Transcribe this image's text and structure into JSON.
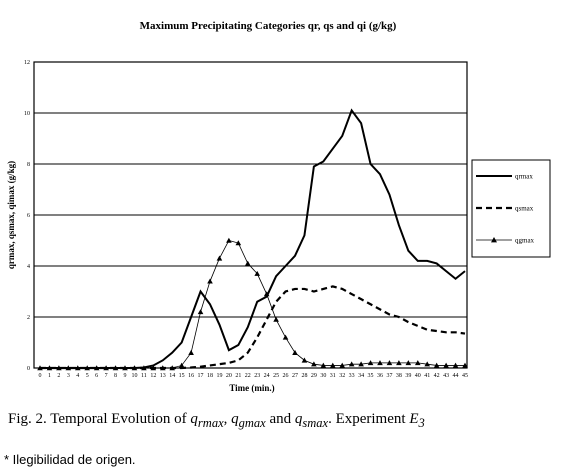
{
  "chart_data": {
    "type": "line",
    "title": "Maximum Precipitating Categories qr, qs and qi (g/kg)",
    "xlabel": "Time (min.)",
    "ylabel": "qrmax, qsmax, qimax (g/kg)",
    "ylim": [
      0,
      12
    ],
    "y_ticks": [
      "0",
      "2",
      "4",
      "6",
      "8",
      "10",
      "12"
    ],
    "x": [
      0,
      1,
      2,
      3,
      4,
      5,
      6,
      7,
      8,
      9,
      10,
      11,
      12,
      13,
      14,
      15,
      16,
      17,
      18,
      19,
      20,
      21,
      22,
      23,
      24,
      25,
      26,
      27,
      28,
      29,
      30,
      31,
      32,
      33,
      34,
      35,
      36,
      37,
      38,
      39,
      40,
      41,
      42,
      43,
      44,
      45
    ],
    "grid": "horizontal",
    "legend_position": "right",
    "series": [
      {
        "name": "qrmax",
        "style": "solid",
        "values": [
          0,
          0,
          0,
          0,
          0,
          0,
          0,
          0,
          0,
          0,
          0,
          0.02,
          0.1,
          0.3,
          0.6,
          1.0,
          2.0,
          3.0,
          2.5,
          1.7,
          0.7,
          0.9,
          1.6,
          2.6,
          2.8,
          3.6,
          4.0,
          4.4,
          5.2,
          7.9,
          8.1,
          8.6,
          9.1,
          10.1,
          9.6,
          8.0,
          7.6,
          6.8,
          5.6,
          4.6,
          4.2,
          4.2,
          4.1,
          3.8,
          3.5,
          3.8
        ]
      },
      {
        "name": "qsmax",
        "style": "dashed",
        "values": [
          0,
          0,
          0,
          0,
          0,
          0,
          0,
          0,
          0,
          0,
          0,
          0,
          0,
          0,
          0,
          0,
          0.02,
          0.05,
          0.1,
          0.15,
          0.2,
          0.3,
          0.6,
          1.2,
          1.9,
          2.6,
          3.0,
          3.1,
          3.1,
          3.0,
          3.1,
          3.2,
          3.1,
          2.9,
          2.7,
          2.5,
          2.3,
          2.1,
          2.0,
          1.8,
          1.65,
          1.5,
          1.45,
          1.4,
          1.4,
          1.35
        ]
      },
      {
        "name": "qgmax",
        "style": "triangle",
        "values": [
          0,
          0,
          0,
          0,
          0,
          0,
          0,
          0,
          0,
          0,
          0,
          0,
          0,
          0,
          0,
          0.1,
          0.6,
          2.2,
          3.4,
          4.3,
          5.0,
          4.9,
          4.1,
          3.7,
          2.9,
          1.9,
          1.2,
          0.6,
          0.3,
          0.15,
          0.1,
          0.1,
          0.1,
          0.15,
          0.15,
          0.2,
          0.2,
          0.2,
          0.2,
          0.2,
          0.2,
          0.15,
          0.1,
          0.1,
          0.1,
          0.1
        ]
      }
    ]
  },
  "caption": {
    "fig_label": "Fig. 2.",
    "text_before": "Temporal Evolution of",
    "var1_base": "q",
    "var1_sub": "rmax",
    "sep1": ",",
    "var2_base": "q",
    "var2_sub": "gmax",
    "and_word": "and",
    "var3_base": "q",
    "var3_sub": "smax",
    "text_after": ". Experiment",
    "exp_base": "E",
    "exp_sub": "3"
  },
  "note": "* Ilegibilidad de origen."
}
